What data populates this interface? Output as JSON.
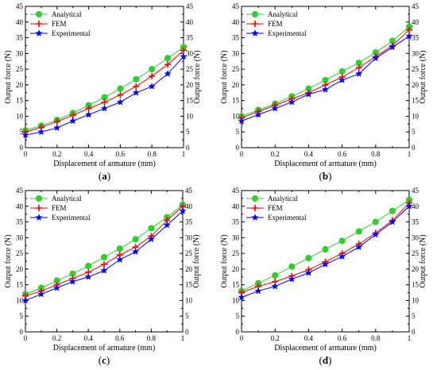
{
  "colors": {
    "analytical": "#33cc33",
    "fem": "#ff0000",
    "experimental": "#0000ff",
    "axis": "#000000"
  },
  "chart_data": [
    {
      "type": "line",
      "label": "a",
      "xlabel": "Displacement of armature (mm)",
      "ylabel": "Output force (N)",
      "ylabel_right": "Output force (N)",
      "xlim": [
        0,
        1
      ],
      "ylim": [
        0,
        45
      ],
      "xticks": [
        0,
        0.2,
        0.4,
        0.6,
        0.8,
        1
      ],
      "yticks": [
        0,
        5,
        10,
        15,
        20,
        25,
        30,
        35,
        40,
        45
      ],
      "legend": "top-left",
      "grid": false,
      "x": [
        0,
        0.1,
        0.2,
        0.3,
        0.4,
        0.5,
        0.6,
        0.7,
        0.8,
        0.9,
        1.0
      ],
      "series": [
        {
          "name": "Analytical",
          "marker": "circle",
          "values": [
            5.5,
            7.0,
            8.8,
            11.0,
            13.5,
            16.0,
            18.8,
            21.8,
            25.0,
            28.5,
            32.0
          ]
        },
        {
          "name": "FEM",
          "marker": "plus",
          "values": [
            5.0,
            6.5,
            8.3,
            10.3,
            12.5,
            14.5,
            16.8,
            19.5,
            22.8,
            26.5,
            31.0
          ]
        },
        {
          "name": "Experimental",
          "marker": "star",
          "values": [
            4.0,
            5.0,
            6.3,
            8.5,
            10.5,
            12.5,
            14.5,
            17.5,
            19.5,
            23.5,
            29.0
          ]
        }
      ]
    },
    {
      "type": "line",
      "label": "b",
      "xlabel": "Displacement of armature (mm)",
      "ylabel": "Output force (N)",
      "ylabel_right": "Output force (N)",
      "xlim": [
        0,
        1
      ],
      "ylim": [
        0,
        45
      ],
      "xticks": [
        0,
        0.2,
        0.4,
        0.6,
        0.8,
        1
      ],
      "yticks": [
        0,
        5,
        10,
        15,
        20,
        25,
        30,
        35,
        40,
        45
      ],
      "legend": "top-left",
      "grid": false,
      "x": [
        0,
        0.1,
        0.2,
        0.3,
        0.4,
        0.5,
        0.6,
        0.7,
        0.8,
        0.9,
        1.0
      ],
      "series": [
        {
          "name": "Analytical",
          "marker": "circle",
          "values": [
            10.0,
            12.0,
            14.0,
            16.3,
            18.8,
            21.5,
            24.3,
            27.0,
            30.3,
            34.0,
            38.5
          ]
        },
        {
          "name": "FEM",
          "marker": "plus",
          "values": [
            9.5,
            11.5,
            13.5,
            15.5,
            17.5,
            20.0,
            22.5,
            25.5,
            29.0,
            32.5,
            37.5
          ]
        },
        {
          "name": "Experimental",
          "marker": "star",
          "values": [
            8.5,
            10.5,
            12.5,
            14.5,
            17.0,
            18.5,
            21.5,
            23.5,
            28.5,
            32.0,
            35.5
          ]
        }
      ]
    },
    {
      "type": "line",
      "label": "c",
      "xlabel": "Displacement of armature (mm)",
      "ylabel": "Output force (N)",
      "ylabel_right": "Output force (N)",
      "xlim": [
        0,
        1
      ],
      "ylim": [
        0,
        45
      ],
      "xticks": [
        0,
        0.2,
        0.4,
        0.6,
        0.8,
        1
      ],
      "yticks": [
        0,
        5,
        10,
        15,
        20,
        25,
        30,
        35,
        40,
        45
      ],
      "legend": "top-left",
      "grid": false,
      "x": [
        0,
        0.1,
        0.2,
        0.3,
        0.4,
        0.5,
        0.6,
        0.7,
        0.8,
        0.9,
        1.0
      ],
      "series": [
        {
          "name": "Analytical",
          "marker": "circle",
          "values": [
            12.0,
            14.0,
            16.3,
            18.5,
            21.0,
            23.8,
            26.5,
            29.5,
            33.0,
            36.5,
            40.5
          ]
        },
        {
          "name": "FEM",
          "marker": "plus",
          "values": [
            11.5,
            13.0,
            15.0,
            17.0,
            19.0,
            21.5,
            24.5,
            27.0,
            30.5,
            35.5,
            40.0
          ]
        },
        {
          "name": "Experimental",
          "marker": "star",
          "values": [
            10.0,
            12.0,
            14.0,
            16.0,
            17.5,
            19.5,
            23.0,
            25.5,
            29.5,
            34.0,
            38.5
          ]
        }
      ]
    },
    {
      "type": "line",
      "label": "d",
      "xlabel": "Displacement of armature (mm)",
      "ylabel": "Output force (N)",
      "ylabel_right": "Output force (N)",
      "xlim": [
        0,
        1
      ],
      "ylim": [
        0,
        45
      ],
      "xticks": [
        0,
        0.2,
        0.4,
        0.6,
        0.8,
        1
      ],
      "yticks": [
        0,
        5,
        10,
        15,
        20,
        25,
        30,
        35,
        40,
        45
      ],
      "legend": "top-left",
      "grid": false,
      "x": [
        0,
        0.1,
        0.2,
        0.3,
        0.4,
        0.5,
        0.6,
        0.7,
        0.8,
        0.9,
        1.0
      ],
      "series": [
        {
          "name": "Analytical",
          "marker": "circle",
          "values": [
            13.0,
            15.5,
            18.0,
            20.8,
            23.5,
            26.3,
            29.0,
            32.0,
            35.0,
            38.5,
            42.0
          ]
        },
        {
          "name": "FEM",
          "marker": "plus",
          "values": [
            12.5,
            14.5,
            16.0,
            17.8,
            19.8,
            22.3,
            25.0,
            28.0,
            31.5,
            35.5,
            41.0
          ]
        },
        {
          "name": "Experimental",
          "marker": "star",
          "values": [
            11.0,
            13.0,
            14.5,
            16.8,
            18.8,
            21.5,
            24.0,
            27.0,
            31.0,
            35.0,
            40.0
          ]
        }
      ]
    }
  ]
}
